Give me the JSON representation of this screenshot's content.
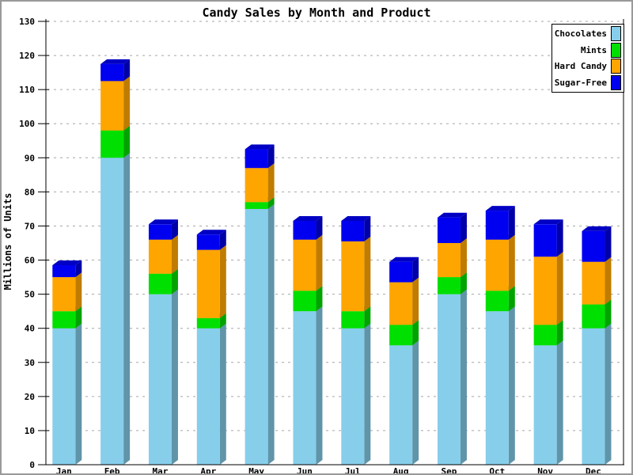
{
  "title": "Candy Sales by Month and Product",
  "y_axis_label": "Millions of Units",
  "chart_data": {
    "type": "bar",
    "stacked": true,
    "title": "Candy Sales by Month and Product",
    "xlabel": "",
    "ylabel": "Millions of Units",
    "ylim": [
      0,
      130
    ],
    "ytick_step": 10,
    "ytick_labels": [
      "0",
      "10",
      "20",
      "30",
      "40",
      "50",
      "60",
      "70",
      "80",
      "90",
      "100",
      "110",
      "120",
      "130"
    ],
    "grid": "horizontal-dashed",
    "grid_color": "#A6A6A6",
    "legend_position": "top-right",
    "categories": [
      "Jan",
      "Feb",
      "Mar",
      "Apr",
      "May",
      "Jun",
      "Jul",
      "Aug",
      "Sep",
      "Oct",
      "Nov",
      "Dec"
    ],
    "series": [
      {
        "name": "Chocolates",
        "color": "#87CEEB",
        "color_top": "#6FB3CE",
        "color_side": "#6094A9",
        "values": [
          40,
          90,
          50,
          40,
          75,
          45,
          40,
          35,
          50,
          45,
          35,
          40
        ]
      },
      {
        "name": "Mints",
        "color": "#00E000",
        "color_top": "#00B800",
        "color_side": "#00A300",
        "values": [
          5,
          8,
          6,
          3,
          2,
          6,
          5,
          6,
          5,
          6,
          6,
          7
        ]
      },
      {
        "name": "Hard Candy",
        "color": "#FFA500",
        "color_top": "#D68A00",
        "color_side": "#BF7C00",
        "values": [
          10,
          14.5,
          10,
          20,
          10,
          15,
          20.5,
          12.5,
          10,
          15,
          20,
          12.5
        ]
      },
      {
        "name": "Sugar-Free",
        "color": "#0000F0",
        "color_top": "#0000C4",
        "color_side": "#0000A8",
        "values": [
          3.5,
          5,
          4.5,
          4.5,
          5.5,
          5.5,
          6,
          6,
          7.5,
          8.5,
          9.5,
          9
        ]
      }
    ],
    "totals": [
      58.5,
      117.5,
      70.5,
      67.5,
      92.5,
      71.5,
      71.5,
      59.5,
      72.5,
      74.5,
      70.5,
      68.5
    ]
  }
}
